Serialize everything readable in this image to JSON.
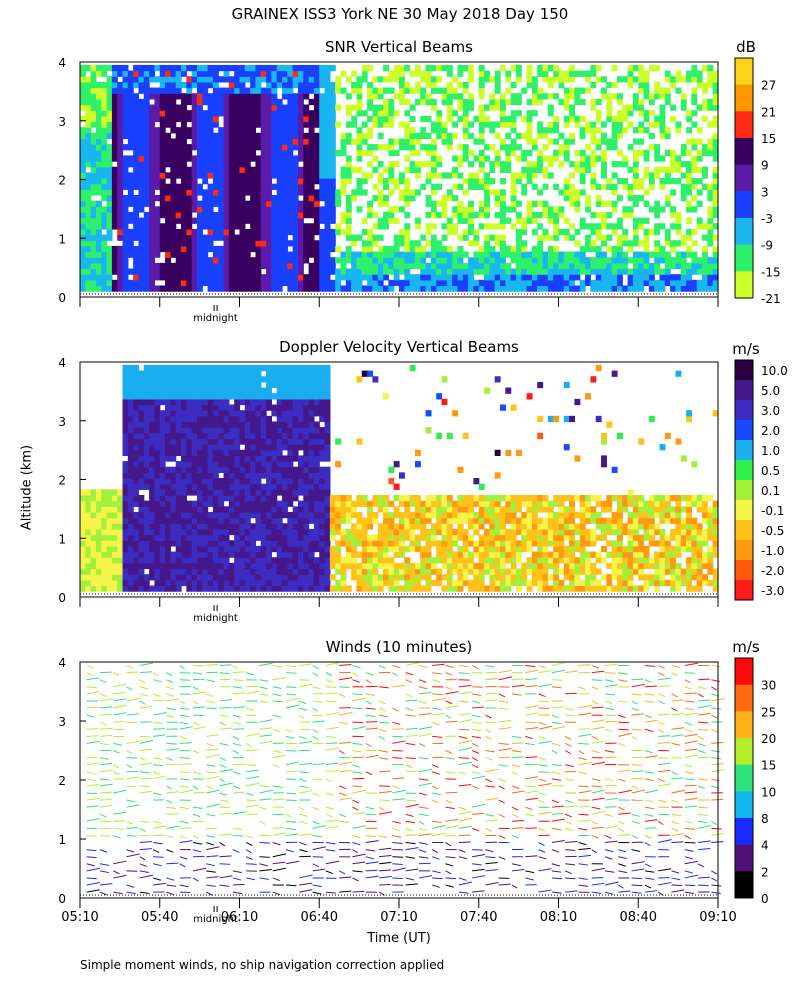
{
  "figure": {
    "title": "GRAINEX ISS3 York NE  30 May 2018 Day 150",
    "ylabel": "Altitude (km)",
    "xlabel": "Time (UT)",
    "midnight_label": "midnight",
    "footnote": "Simple moment winds, no ship navigation correction applied"
  },
  "chart_data": [
    {
      "type": "heatmap",
      "title": "SNR Vertical Beams",
      "colorbar_unit": "dB",
      "colorbar_ticks": [
        "27",
        "21",
        "15",
        "9",
        "3",
        "-3",
        "-9",
        "-15",
        "-21"
      ],
      "colorbar_colors": [
        "#ffd21a",
        "#ff9800",
        "#ff2a10",
        "#3a0060",
        "#5a1ca8",
        "#1a40ff",
        "#19b6f0",
        "#2ef06a",
        "#ccff2a"
      ],
      "ylim": [
        0,
        4
      ],
      "yticks": [
        "0",
        "1",
        "2",
        "3",
        "4"
      ],
      "xticks": [
        "05:10",
        "05:40",
        "06:10",
        "06:40",
        "07:10",
        "07:40",
        "08:10",
        "08:40",
        "09:10"
      ]
    },
    {
      "type": "heatmap",
      "title": "Doppler Velocity Vertical Beams",
      "colorbar_unit": "m/s",
      "colorbar_ticks": [
        "10.0",
        "5.0",
        "3.0",
        "2.0",
        "1.0",
        "0.5",
        "0.1",
        "-0.1",
        "-0.5",
        "-1.0",
        "-2.0",
        "-3.0"
      ],
      "colorbar_colors": [
        "#2a0040",
        "#44188a",
        "#3c2cc0",
        "#1a4aff",
        "#1aaef0",
        "#2ef04a",
        "#a2f03a",
        "#f4f44a",
        "#ffc21a",
        "#ff9a10",
        "#ff5a10",
        "#ff1a1a"
      ],
      "ylim": [
        0,
        4
      ],
      "yticks": [
        "0",
        "1",
        "2",
        "3",
        "4"
      ],
      "xticks": [
        "05:10",
        "05:40",
        "06:10",
        "06:40",
        "07:10",
        "07:40",
        "08:10",
        "08:40",
        "09:10"
      ]
    },
    {
      "type": "scatter",
      "title": "Winds (10 minutes)",
      "colorbar_unit": "m/s",
      "colorbar_ticks": [
        "30",
        "25",
        "20",
        "15",
        "10",
        "8",
        "4",
        "2",
        "0"
      ],
      "colorbar_colors": [
        "#ff0a0a",
        "#ff6a10",
        "#ffb21a",
        "#b2ee2a",
        "#2ee27a",
        "#14b6f0",
        "#1a2aff",
        "#50107a",
        "#000000"
      ],
      "ylim": [
        0,
        4
      ],
      "yticks": [
        "0",
        "1",
        "2",
        "3",
        "4"
      ],
      "xticks": [
        "05:10",
        "05:40",
        "06:10",
        "06:40",
        "07:10",
        "07:40",
        "08:10",
        "08:40",
        "09:10"
      ],
      "xlabel": "Time (UT)"
    }
  ]
}
